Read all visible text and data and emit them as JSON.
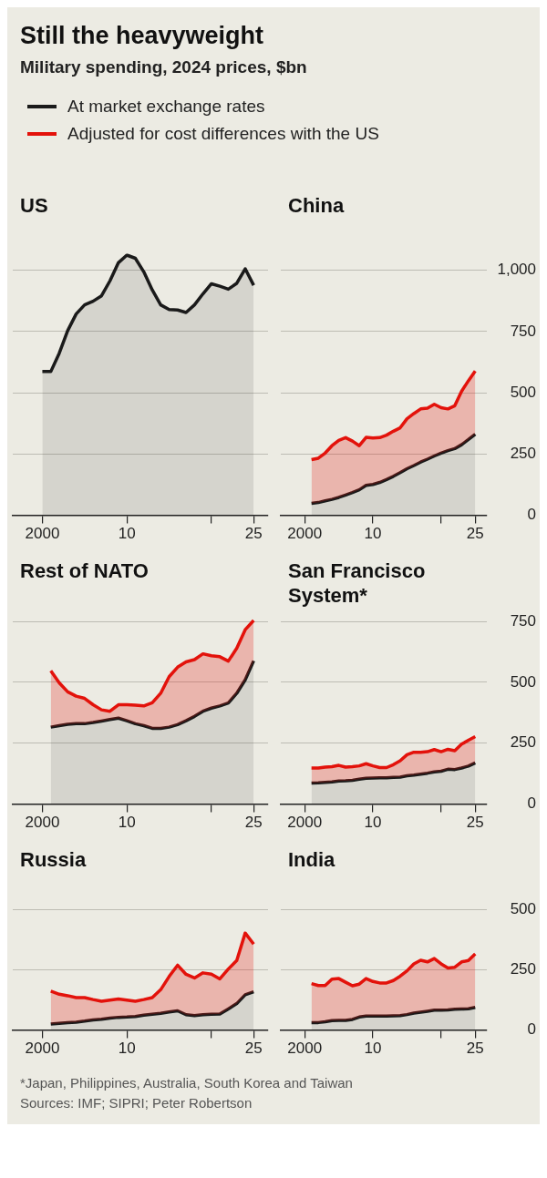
{
  "chart_data": [
    {
      "type": "other",
      "title": "Still the heavyweight",
      "subtitle": "Military spending, 2024 prices, $bn"
    },
    {
      "type": "area",
      "title": "US",
      "x": [
        2000,
        2001,
        2002,
        2003,
        2004,
        2005,
        2006,
        2007,
        2008,
        2009,
        2010,
        2011,
        2012,
        2013,
        2014,
        2015,
        2016,
        2017,
        2018,
        2019,
        2020,
        2021,
        2022,
        2023,
        2024,
        2025
      ],
      "series": [
        {
          "color": "#1a1a1a",
          "values": [
            586,
            586,
            661,
            753,
            821,
            858,
            873,
            895,
            956,
            1030,
            1061,
            1048,
            993,
            919,
            858,
            839,
            837,
            827,
            858,
            903,
            944,
            934,
            922,
            946,
            1005,
            938
          ]
        }
      ],
      "xlim": [
        1996.5,
        2026.7
      ],
      "xticks": [
        {
          "value": 2000,
          "label": "2000"
        },
        {
          "value": 2010,
          "label": "10"
        },
        {
          "value": 2020,
          "label": null
        },
        {
          "value": 2025,
          "label": "25"
        }
      ],
      "yticks": [
        0,
        250,
        500,
        750,
        1000
      ],
      "grid": "y",
      "tick_labels": "x"
    },
    {
      "type": "area",
      "title": "China",
      "x": [
        2001,
        2002,
        2003,
        2004,
        2005,
        2006,
        2007,
        2008,
        2009,
        2010,
        2011,
        2012,
        2013,
        2014,
        2015,
        2016,
        2017,
        2018,
        2019,
        2020,
        2021,
        2022,
        2023,
        2024,
        2025
      ],
      "series": [
        {
          "name": "At market exchange rates",
          "color": "#1a1a1a",
          "values": [
            49,
            52,
            59,
            65,
            73,
            83,
            93,
            104,
            122,
            126,
            134,
            146,
            159,
            174,
            190,
            203,
            217,
            229,
            242,
            254,
            264,
            272,
            288,
            309,
            331
          ]
        },
        {
          "name": "Adjusted for cost differences with the US",
          "color": "#e3120b",
          "values": [
            227,
            233,
            254,
            284,
            306,
            317,
            303,
            284,
            318,
            315,
            317,
            327,
            343,
            357,
            394,
            415,
            434,
            437,
            453,
            439,
            434,
            447,
            506,
            549,
            589
          ]
        }
      ],
      "xlim": [
        1996.5,
        2026.7
      ],
      "xticks": [
        {
          "value": 2000,
          "label": "2000"
        },
        {
          "value": 2010,
          "label": "10"
        },
        {
          "value": 2020,
          "label": null
        },
        {
          "value": 2025,
          "label": "25"
        }
      ],
      "ylim": [
        0,
        1000
      ],
      "yticks": [
        0,
        250,
        500,
        750,
        {
          "value": 1000,
          "label": "1,000"
        }
      ],
      "grid": "y",
      "legend": "top"
    },
    {
      "type": "area",
      "title": "Rest of NATO",
      "x": [
        2001,
        2002,
        2003,
        2004,
        2005,
        2006,
        2007,
        2008,
        2009,
        2010,
        2011,
        2012,
        2013,
        2014,
        2015,
        2016,
        2017,
        2018,
        2019,
        2020,
        2021,
        2022,
        2023,
        2024,
        2025
      ],
      "series": [
        {
          "color": "#1a1a1a",
          "values": [
            316,
            322,
            328,
            330,
            330,
            335,
            341,
            347,
            353,
            342,
            330,
            322,
            311,
            311,
            316,
            326,
            342,
            360,
            381,
            394,
            403,
            415,
            455,
            510,
            588
          ]
        },
        {
          "color": "#e3120b",
          "values": [
            547,
            498,
            461,
            443,
            434,
            408,
            387,
            381,
            408,
            408,
            406,
            403,
            416,
            455,
            523,
            562,
            584,
            593,
            617,
            609,
            605,
            587,
            640,
            716,
            754
          ]
        }
      ],
      "xlim": [
        1996.5,
        2026.7
      ],
      "xticks": [
        {
          "value": 2000,
          "label": "2000"
        },
        {
          "value": 2010,
          "label": "10"
        },
        {
          "value": 2020,
          "label": null
        },
        {
          "value": 2025,
          "label": "25"
        }
      ],
      "yticks": [
        0,
        250,
        500,
        750
      ],
      "grid": "y",
      "tick_labels": "x"
    },
    {
      "type": "area",
      "title": "San Francisco System*",
      "x": [
        2001,
        2002,
        2003,
        2004,
        2005,
        2006,
        2007,
        2008,
        2009,
        2010,
        2011,
        2012,
        2013,
        2014,
        2015,
        2016,
        2017,
        2018,
        2019,
        2020,
        2021,
        2022,
        2023,
        2024,
        2025
      ],
      "series": [
        {
          "color": "#1a1a1a",
          "values": [
            86,
            87,
            89,
            91,
            95,
            96,
            98,
            102,
            106,
            107,
            108,
            108,
            110,
            111,
            116,
            119,
            123,
            127,
            132,
            135,
            143,
            142,
            148,
            156,
            169
          ]
        },
        {
          "color": "#e3120b",
          "values": [
            148,
            148,
            152,
            154,
            159,
            152,
            154,
            157,
            166,
            157,
            150,
            150,
            162,
            178,
            203,
            213,
            213,
            215,
            224,
            215,
            225,
            219,
            246,
            262,
            277
          ]
        }
      ],
      "xlim": [
        1996.5,
        2026.7
      ],
      "xticks": [
        {
          "value": 2000,
          "label": "2000"
        },
        {
          "value": 2010,
          "label": "10"
        },
        {
          "value": 2020,
          "label": null
        },
        {
          "value": 2025,
          "label": "25"
        }
      ],
      "ylim": [
        0,
        750
      ],
      "yticks": [
        0,
        250,
        500,
        750
      ],
      "grid": "y"
    },
    {
      "type": "area",
      "title": "Russia",
      "x": [
        2001,
        2002,
        2003,
        2004,
        2005,
        2006,
        2007,
        2008,
        2009,
        2010,
        2011,
        2012,
        2013,
        2014,
        2015,
        2016,
        2017,
        2018,
        2019,
        2020,
        2021,
        2022,
        2023,
        2024,
        2025
      ],
      "series": [
        {
          "color": "#1a1a1a",
          "values": [
            25,
            28,
            31,
            33,
            37,
            42,
            45,
            50,
            53,
            54,
            56,
            62,
            66,
            70,
            75,
            80,
            64,
            60,
            64,
            66,
            67,
            88,
            110,
            147,
            159
          ]
        },
        {
          "color": "#e3120b",
          "values": [
            162,
            149,
            143,
            135,
            135,
            127,
            120,
            125,
            129,
            125,
            120,
            127,
            135,
            168,
            223,
            270,
            232,
            217,
            238,
            233,
            213,
            254,
            290,
            404,
            358
          ]
        }
      ],
      "xlim": [
        1996.5,
        2026.7
      ],
      "xticks": [
        {
          "value": 2000,
          "label": "2000"
        },
        {
          "value": 2010,
          "label": "10"
        },
        {
          "value": 2020,
          "label": null
        },
        {
          "value": 2025,
          "label": "25"
        }
      ],
      "yticks": [
        0,
        250,
        500
      ],
      "grid": "y",
      "tick_labels": "x"
    },
    {
      "type": "area",
      "title": "India",
      "x": [
        2001,
        2002,
        2003,
        2004,
        2005,
        2006,
        2007,
        2008,
        2009,
        2010,
        2011,
        2012,
        2013,
        2014,
        2015,
        2016,
        2017,
        2018,
        2019,
        2020,
        2021,
        2022,
        2023,
        2024,
        2025
      ],
      "series": [
        {
          "color": "#1a1a1a",
          "values": [
            31,
            31,
            34,
            39,
            40,
            40,
            44,
            54,
            58,
            58,
            58,
            58,
            59,
            60,
            64,
            70,
            74,
            78,
            82,
            82,
            83,
            86,
            87,
            88,
            94
          ]
        },
        {
          "color": "#e3120b",
          "values": [
            192,
            184,
            184,
            211,
            213,
            198,
            183,
            190,
            213,
            201,
            195,
            195,
            205,
            223,
            245,
            274,
            289,
            282,
            296,
            274,
            257,
            260,
            282,
            288,
            315
          ]
        }
      ],
      "xlim": [
        1996.5,
        2026.7
      ],
      "xticks": [
        {
          "value": 2000,
          "label": "2000"
        },
        {
          "value": 2010,
          "label": "10"
        },
        {
          "value": 2020,
          "label": null
        },
        {
          "value": 2025,
          "label": "25"
        }
      ],
      "ylim": [
        0,
        500
      ],
      "yticks": [
        0,
        250,
        500
      ],
      "grid": "y",
      "annotations": [
        "*Japan, Philippines, Australia, South Korea and Taiwan",
        "Sources: IMF; SIPRI; Peter Robertson"
      ]
    }
  ]
}
